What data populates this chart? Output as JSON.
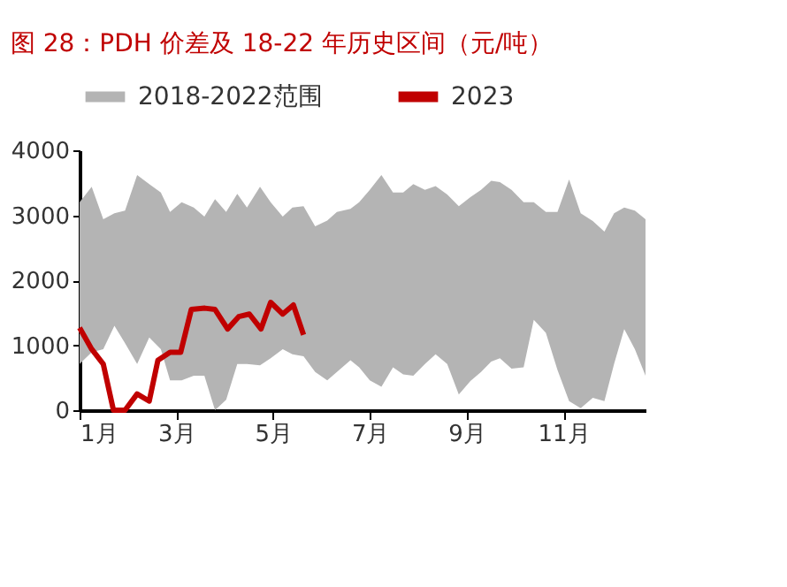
{
  "chart_data": {
    "type": "area",
    "title": "图 28：PDH 价差及 18-22 年历史区间（元/吨）",
    "series": [
      {
        "name": "2018-2022范围",
        "type": "area",
        "color": "#b4b4b4",
        "x": [
          1,
          1.25,
          1.49,
          1.72,
          1.94,
          2.19,
          2.44,
          2.68,
          2.87,
          3.11,
          3.36,
          3.58,
          3.8,
          4.03,
          4.26,
          4.46,
          4.73,
          4.95,
          5.2,
          5.4,
          5.63,
          5.87,
          6.12,
          6.32,
          6.6,
          6.78,
          7,
          7.24,
          7.48,
          7.69,
          7.9,
          8.14,
          8.36,
          8.6,
          8.84,
          9.08,
          9.3,
          9.51,
          9.69,
          9.93,
          10.18,
          10.39,
          10.64,
          10.88,
          11.12,
          11.36,
          11.61,
          11.85,
          12.05,
          12.26,
          12.48,
          12.7
        ],
        "lower": [
          710,
          890,
          940,
          1300,
          1030,
          710,
          1120,
          940,
          460,
          460,
          530,
          530,
          0,
          160,
          710,
          710,
          690,
          800,
          940,
          860,
          830,
          590,
          460,
          590,
          770,
          660,
          460,
          360,
          660,
          550,
          530,
          710,
          860,
          710,
          240,
          450,
          590,
          750,
          800,
          640,
          660,
          1390,
          1190,
          620,
          140,
          30,
          190,
          140,
          710,
          1250,
          940,
          530
        ],
        "values": [
          null,
          null,
          null,
          null,
          null,
          null,
          null,
          null,
          null,
          null,
          null,
          null,
          null,
          null,
          null,
          null,
          null,
          null,
          null,
          null,
          null,
          null,
          null,
          null,
          null,
          null,
          null,
          null,
          null,
          null,
          null,
          null,
          null,
          null,
          null,
          null,
          null,
          null,
          null,
          null,
          null,
          null,
          null,
          null,
          null,
          null,
          null,
          null,
          null,
          null,
          null,
          null
        ],
        "upper": [
          3200,
          3440,
          2940,
          3030,
          3070,
          3620,
          3480,
          3350,
          3050,
          3200,
          3120,
          2980,
          3250,
          3050,
          3330,
          3120,
          3440,
          3200,
          2980,
          3120,
          3140,
          2830,
          2920,
          3050,
          3100,
          3200,
          3390,
          3620,
          3350,
          3350,
          3480,
          3390,
          3450,
          3320,
          3140,
          3280,
          3390,
          3530,
          3510,
          3390,
          3200,
          3200,
          3050,
          3050,
          3550,
          3030,
          2910,
          2750,
          3030,
          3120,
          3070,
          2940
        ]
      },
      {
        "name": "2023",
        "type": "line",
        "color": "#c00000",
        "x": [
          1,
          1.25,
          1.49,
          1.7,
          1.94,
          2.19,
          2.44,
          2.62,
          2.87,
          3.09,
          3.31,
          3.59,
          3.8,
          4.06,
          4.29,
          4.51,
          4.75,
          4.95,
          5.2,
          5.42,
          5.63
        ],
        "values": [
          1270,
          940,
          710,
          0,
          0,
          250,
          140,
          770,
          890,
          890,
          1550,
          1570,
          1550,
          1250,
          1440,
          1480,
          1250,
          1660,
          1480,
          1620,
          1160
        ]
      }
    ],
    "xlim": [
      1,
      12.7
    ],
    "xticks": [
      {
        "value": 1,
        "label": "1月"
      },
      {
        "value": 3,
        "label": "3月"
      },
      {
        "value": 5,
        "label": "5月"
      },
      {
        "value": 7,
        "label": "7月"
      },
      {
        "value": 9,
        "label": "9月"
      },
      {
        "value": 11,
        "label": "11月"
      }
    ],
    "ylim": [
      0,
      4000
    ],
    "yticks": [
      0,
      1000,
      2000,
      3000,
      4000
    ],
    "grid": false,
    "legend": "top",
    "line_style": "solid",
    "marker": "none"
  }
}
